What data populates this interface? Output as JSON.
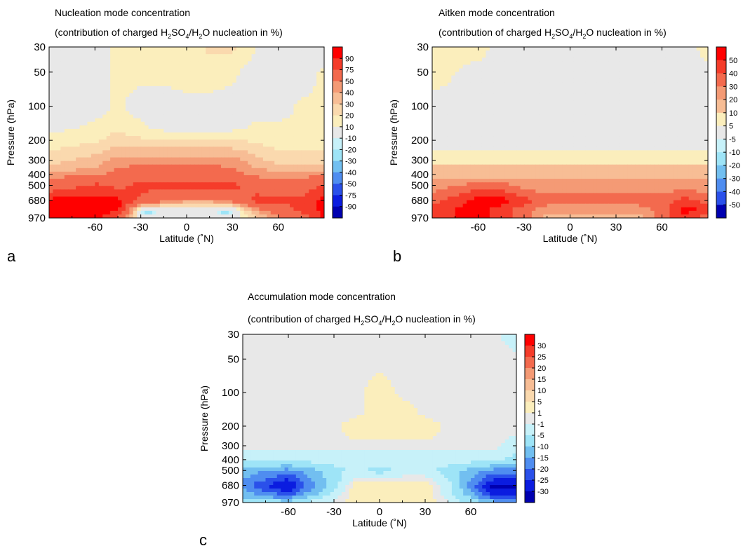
{
  "chart_data": [
    {
      "type": "heatmap",
      "panel_label": "a",
      "title": "Nucleation mode concentration",
      "subtitle": {
        "before": "(contribution of charged H",
        "sub1": "2",
        "mid1": "SO",
        "sub2": "4",
        "mid2": "/H",
        "sub3": "2",
        "after": "O nucleation in %)"
      },
      "xlabel": "Latitude (˚N)",
      "ylabel": "Pressure (hPa)",
      "xlim": [
        -90,
        90
      ],
      "ylim": [
        970,
        30
      ],
      "y_scale": "log",
      "x_ticks": [
        "-60",
        "-30",
        "0",
        "30",
        "60"
      ],
      "x_tick_values": [
        -60,
        -30,
        0,
        30,
        60
      ],
      "y_ticks": [
        "30",
        "50",
        "100",
        "200",
        "300",
        "400",
        "500",
        "680",
        "970"
      ],
      "y_tick_values": [
        30,
        50,
        100,
        200,
        300,
        400,
        500,
        680,
        970
      ],
      "colorbar": {
        "labels": [
          "90",
          "75",
          "50",
          "40",
          "30",
          "20",
          "10",
          "-10",
          "-20",
          "-30",
          "-40",
          "-50",
          "-75",
          "-90"
        ],
        "colors": [
          "#ff0000",
          "#f53c2a",
          "#f36a4e",
          "#f49a75",
          "#f7bd95",
          "#fad9ae",
          "#fbeebc",
          "#e8e8e8",
          "#c7f1f9",
          "#9ee4f7",
          "#72bff0",
          "#4f8df0",
          "#2a50ea",
          "#0b1ce0",
          "#0000b0"
        ]
      },
      "contours": {
        "x": [
          -90,
          -60,
          -45,
          -30,
          -15,
          0,
          15,
          30,
          45,
          60,
          75,
          90
        ],
        "y": [
          30,
          50,
          100,
          150,
          200,
          300,
          400,
          500,
          680,
          820,
          970
        ],
        "z": [
          [
            10,
            10,
            10,
            12,
            12,
            12,
            22,
            22,
            10,
            5,
            5,
            5
          ],
          [
            10,
            5,
            12,
            12,
            12,
            15,
            15,
            12,
            5,
            5,
            5,
            12
          ],
          [
            5,
            5,
            12,
            5,
            5,
            5,
            5,
            5,
            5,
            5,
            12,
            12
          ],
          [
            5,
            12,
            18,
            12,
            5,
            5,
            5,
            5,
            12,
            12,
            12,
            15
          ],
          [
            15,
            18,
            25,
            22,
            22,
            22,
            22,
            22,
            18,
            15,
            15,
            15
          ],
          [
            25,
            35,
            45,
            45,
            45,
            45,
            45,
            45,
            35,
            25,
            25,
            25
          ],
          [
            45,
            45,
            55,
            60,
            65,
            60,
            60,
            55,
            45,
            45,
            45,
            45
          ],
          [
            62,
            80,
            70,
            80,
            80,
            80,
            80,
            80,
            70,
            55,
            62,
            80
          ],
          [
            95,
            95,
            95,
            70,
            55,
            45,
            45,
            55,
            80,
            80,
            80,
            95
          ],
          [
            95,
            95,
            95,
            15,
            5,
            5,
            5,
            5,
            45,
            62,
            80,
            95
          ],
          [
            95,
            95,
            70,
            5,
            5,
            5,
            5,
            5,
            25,
            45,
            62,
            95
          ]
        ],
        "spots": [
          {
            "lat": -25,
            "p": 870,
            "value": -25
          },
          {
            "lat": 25,
            "p": 870,
            "value": -25
          }
        ]
      }
    },
    {
      "type": "heatmap",
      "panel_label": "b",
      "title": "Aitken mode concentration",
      "subtitle": {
        "before": "(contribution of charged H",
        "sub1": "2",
        "mid1": "SO",
        "sub2": "4",
        "mid2": "/H",
        "sub3": "2",
        "after": "O nucleation in %)"
      },
      "xlabel": "Latitude (˚N)",
      "ylabel": "Pressure (hPa)",
      "xlim": [
        -90,
        90
      ],
      "ylim": [
        970,
        30
      ],
      "y_scale": "log",
      "x_ticks": [
        "-60",
        "-30",
        "0",
        "30",
        "60"
      ],
      "x_tick_values": [
        -60,
        -30,
        0,
        30,
        60
      ],
      "y_ticks": [
        "30",
        "50",
        "100",
        "200",
        "300",
        "400",
        "500",
        "680",
        "970"
      ],
      "y_tick_values": [
        30,
        50,
        100,
        200,
        300,
        400,
        500,
        680,
        970
      ],
      "colorbar": {
        "labels": [
          "50",
          "40",
          "30",
          "20",
          "10",
          "5",
          "-5",
          "-10",
          "-20",
          "-30",
          "-40",
          "-50"
        ],
        "colors": [
          "#ff0000",
          "#f53c2a",
          "#f36a4e",
          "#f49a75",
          "#f7bd95",
          "#fbeebc",
          "#e8e8e8",
          "#c7f1f9",
          "#9ee4f7",
          "#72bff0",
          "#4f8df0",
          "#2a50ea",
          "#0000b0"
        ]
      },
      "contours": {
        "x": [
          -90,
          -60,
          -45,
          -30,
          -15,
          0,
          15,
          30,
          45,
          60,
          75,
          90
        ],
        "y": [
          30,
          50,
          100,
          150,
          200,
          300,
          400,
          500,
          680,
          820,
          970
        ],
        "z": [
          [
            7,
            7,
            3,
            3,
            3,
            3,
            3,
            3,
            3,
            3,
            3,
            7
          ],
          [
            7,
            3,
            3,
            3,
            3,
            3,
            3,
            3,
            3,
            3,
            3,
            3
          ],
          [
            3,
            3,
            3,
            3,
            3,
            3,
            3,
            3,
            3,
            3,
            3,
            3
          ],
          [
            3,
            3,
            3,
            3,
            3,
            3,
            3,
            3,
            3,
            3,
            3,
            3
          ],
          [
            3,
            3,
            3,
            3,
            3,
            3,
            3,
            3,
            3,
            3,
            3,
            3
          ],
          [
            7,
            7,
            7,
            7,
            7,
            7,
            7,
            7,
            7,
            7,
            7,
            7
          ],
          [
            15,
            15,
            15,
            15,
            15,
            15,
            15,
            15,
            15,
            15,
            15,
            15
          ],
          [
            25,
            35,
            35,
            25,
            25,
            25,
            25,
            25,
            25,
            25,
            25,
            25
          ],
          [
            35,
            55,
            55,
            45,
            35,
            35,
            35,
            35,
            35,
            35,
            45,
            35
          ],
          [
            45,
            55,
            45,
            35,
            25,
            25,
            25,
            25,
            25,
            35,
            55,
            45
          ],
          [
            45,
            55,
            45,
            35,
            15,
            15,
            15,
            15,
            15,
            35,
            45,
            35
          ]
        ],
        "spots": []
      }
    },
    {
      "type": "heatmap",
      "panel_label": "c",
      "title": "Accumulation mode concentration",
      "subtitle": {
        "before": "(contribution of charged H",
        "sub1": "2",
        "mid1": "SO",
        "sub2": "4",
        "mid2": "/H",
        "sub3": "2",
        "after": "O nucleation in %)"
      },
      "xlabel": "Latitude (˚N)",
      "ylabel": "Pressure (hPa)",
      "xlim": [
        -90,
        90
      ],
      "ylim": [
        970,
        30
      ],
      "y_scale": "log",
      "x_ticks": [
        "-60",
        "-30",
        "0",
        "30",
        "60"
      ],
      "x_tick_values": [
        -60,
        -30,
        0,
        30,
        60
      ],
      "y_ticks": [
        "30",
        "50",
        "100",
        "200",
        "300",
        "400",
        "500",
        "680",
        "970"
      ],
      "y_tick_values": [
        30,
        50,
        100,
        200,
        300,
        400,
        500,
        680,
        970
      ],
      "colorbar": {
        "labels": [
          "30",
          "25",
          "20",
          "15",
          "10",
          "5",
          "1",
          "-1",
          "-5",
          "-10",
          "-15",
          "-20",
          "-25",
          "-30"
        ],
        "colors": [
          "#ff0000",
          "#f53c2a",
          "#f36a4e",
          "#f49a75",
          "#f7bd95",
          "#fad9ae",
          "#fbeebc",
          "#e8e8e8",
          "#c7f1f9",
          "#9ee4f7",
          "#72bff0",
          "#4f8df0",
          "#2a50ea",
          "#0b1ce0",
          "#0000b0"
        ]
      },
      "contours": {
        "x": [
          -90,
          -60,
          -45,
          -30,
          -15,
          0,
          15,
          30,
          45,
          60,
          75,
          90
        ],
        "y": [
          30,
          50,
          100,
          150,
          200,
          300,
          400,
          500,
          680,
          820,
          970
        ],
        "z": [
          [
            0,
            0,
            0,
            0,
            0,
            0,
            0,
            0,
            0,
            0,
            0,
            -3
          ],
          [
            0,
            0,
            0,
            0,
            0,
            0,
            0,
            0,
            0,
            0,
            0,
            0
          ],
          [
            0,
            0,
            0,
            0,
            0,
            3,
            0,
            0,
            0,
            0,
            0,
            0
          ],
          [
            0,
            0,
            0,
            0,
            0,
            3,
            3,
            0,
            0,
            0,
            0,
            0
          ],
          [
            0,
            0,
            0,
            0,
            3,
            3,
            3,
            3,
            0,
            0,
            0,
            0
          ],
          [
            0,
            0,
            0,
            0,
            0,
            0,
            0,
            0,
            0,
            0,
            0,
            -3
          ],
          [
            -3,
            -3,
            -3,
            -3,
            -3,
            -3,
            -3,
            -3,
            -3,
            -3,
            -3,
            -7
          ],
          [
            -12,
            -17,
            -12,
            -7,
            -3,
            -7,
            -3,
            -3,
            -7,
            -12,
            -17,
            -17
          ],
          [
            -17,
            -32,
            -17,
            -7,
            3,
            3,
            3,
            3,
            -3,
            -17,
            -32,
            -32
          ],
          [
            -12,
            -22,
            -12,
            -3,
            3,
            3,
            3,
            3,
            -3,
            -12,
            -27,
            -27
          ],
          [
            -7,
            -7,
            -3,
            0,
            3,
            3,
            3,
            3,
            0,
            -7,
            -12,
            -12
          ]
        ],
        "spots": []
      }
    }
  ]
}
